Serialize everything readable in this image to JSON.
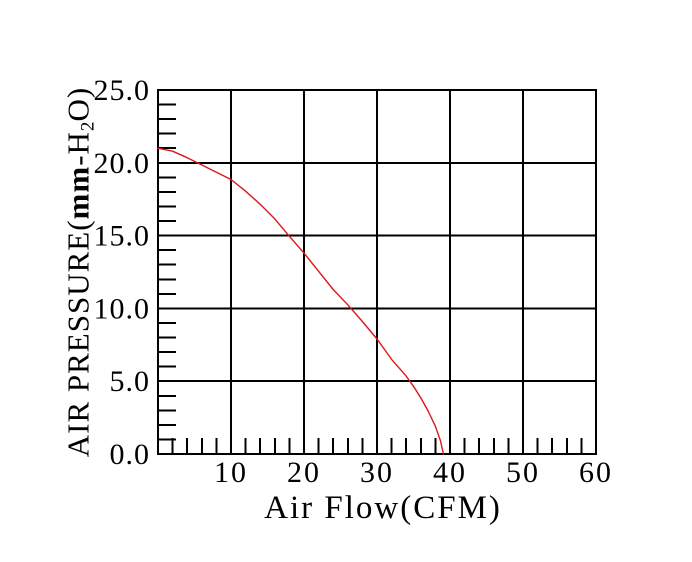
{
  "chart_data": {
    "type": "line",
    "title": "",
    "xlabel": "Air Flow(CFM)",
    "ylabel": "AIR PRESSURE(mm-H2O)",
    "ylabel_parts": {
      "p1": "AIR PRESSURE(",
      "bold": "mm",
      "p2": "-H",
      "sub": "2",
      "p3": "O)"
    },
    "xlim": [
      0,
      60
    ],
    "ylim": [
      0,
      25
    ],
    "x_major_ticks": [
      10,
      20,
      30,
      40,
      50,
      60
    ],
    "x_tick_labels": [
      "10",
      "20",
      "30",
      "40",
      "50",
      "60"
    ],
    "x_minor_step": 2,
    "y_major_ticks": [
      25,
      20,
      15,
      10,
      5,
      0
    ],
    "y_tick_labels": [
      "25.0",
      "20.0",
      "15.0",
      "10.0",
      "5.0",
      "0.0"
    ],
    "y_minor_step": 1,
    "grid": true,
    "legend": "none",
    "series": [
      {
        "name": "air-pressure-vs-air-flow",
        "color": "#dd1717",
        "points": [
          [
            0,
            21.0
          ],
          [
            2,
            20.8
          ],
          [
            4,
            20.35
          ],
          [
            6,
            19.85
          ],
          [
            8,
            19.35
          ],
          [
            10,
            18.85
          ],
          [
            12,
            18.05
          ],
          [
            14,
            17.15
          ],
          [
            16,
            16.15
          ],
          [
            18,
            14.95
          ],
          [
            20,
            13.8
          ],
          [
            22,
            12.55
          ],
          [
            24,
            11.3
          ],
          [
            26,
            10.25
          ],
          [
            28,
            9.1
          ],
          [
            30,
            7.9
          ],
          [
            32,
            6.5
          ],
          [
            34,
            5.35
          ],
          [
            35,
            4.65
          ],
          [
            36,
            3.85
          ],
          [
            37,
            2.95
          ],
          [
            38,
            1.9
          ],
          [
            38.7,
            0.9
          ],
          [
            39.1,
            0.0
          ]
        ]
      }
    ]
  },
  "colors": {
    "background": "#ffffff",
    "axis": "#000000",
    "grid": "#000000",
    "curve": "#dd1717",
    "text": "#000000"
  }
}
